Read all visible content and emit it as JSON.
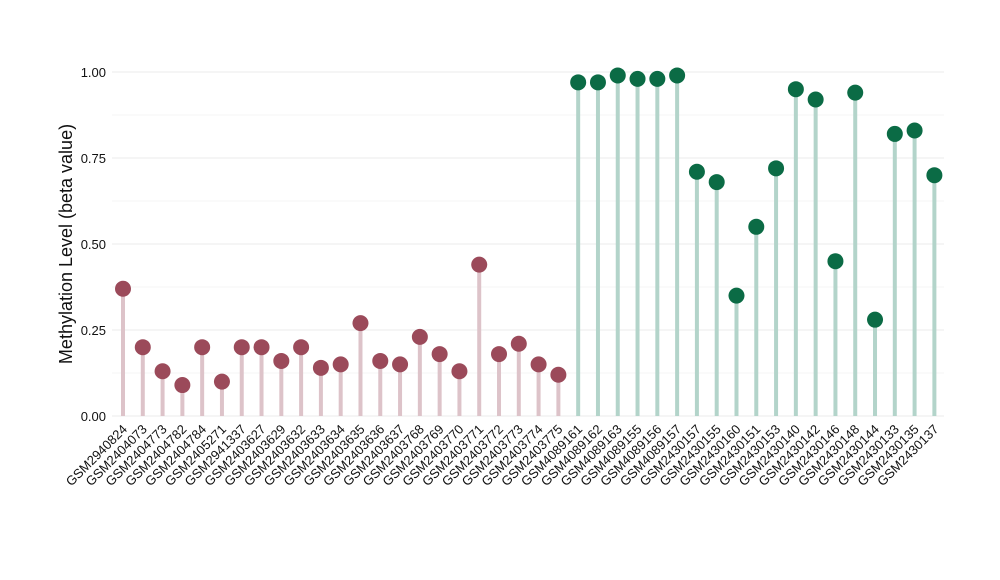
{
  "chart_data": {
    "type": "lollipop",
    "title": "",
    "xlabel": "",
    "ylabel": "Methylation Level (beta value)",
    "ylim": [
      0,
      1
    ],
    "yticks": [
      "0.00",
      "0.25",
      "0.50",
      "0.75",
      "1.00"
    ],
    "grid": true,
    "legend": "none",
    "series": [
      {
        "color": "#9B4A5A",
        "stem_color": "#DDC3C9",
        "categories": [
          "GSM2940824",
          "GSM2404073",
          "GSM2404773",
          "GSM2404782",
          "GSM2404784",
          "GSM2405271",
          "GSM2941337",
          "GSM2403627",
          "GSM2403629",
          "GSM2403632",
          "GSM2403633",
          "GSM2403634",
          "GSM2403635",
          "GSM2403636",
          "GSM2403637",
          "GSM2403768",
          "GSM2403769",
          "GSM2403770",
          "GSM2403771",
          "GSM2403772",
          "GSM2403773",
          "GSM2403774",
          "GSM2403775"
        ],
        "values": [
          0.37,
          0.2,
          0.13,
          0.09,
          0.2,
          0.1,
          0.2,
          0.2,
          0.16,
          0.2,
          0.14,
          0.15,
          0.27,
          0.16,
          0.15,
          0.23,
          0.18,
          0.13,
          0.44,
          0.18,
          0.21,
          0.15,
          0.12
        ]
      },
      {
        "color": "#0B6B45",
        "stem_color": "#B3D4CA",
        "categories": [
          "GSM4089161",
          "GSM4089162",
          "GSM4089163",
          "GSM4089155",
          "GSM4089156",
          "GSM4089157",
          "GSM2430157",
          "GSM2430155",
          "GSM2430160",
          "GSM2430151",
          "GSM2430153",
          "GSM2430140",
          "GSM2430142",
          "GSM2430146",
          "GSM2430148",
          "GSM2430144",
          "GSM2430133",
          "GSM2430135",
          "GSM2430137"
        ],
        "values": [
          0.97,
          0.97,
          0.99,
          0.98,
          0.98,
          0.99,
          0.71,
          0.68,
          0.35,
          0.55,
          0.72,
          0.95,
          0.92,
          0.45,
          0.94,
          0.28,
          0.82,
          0.83,
          0.7
        ]
      }
    ]
  }
}
